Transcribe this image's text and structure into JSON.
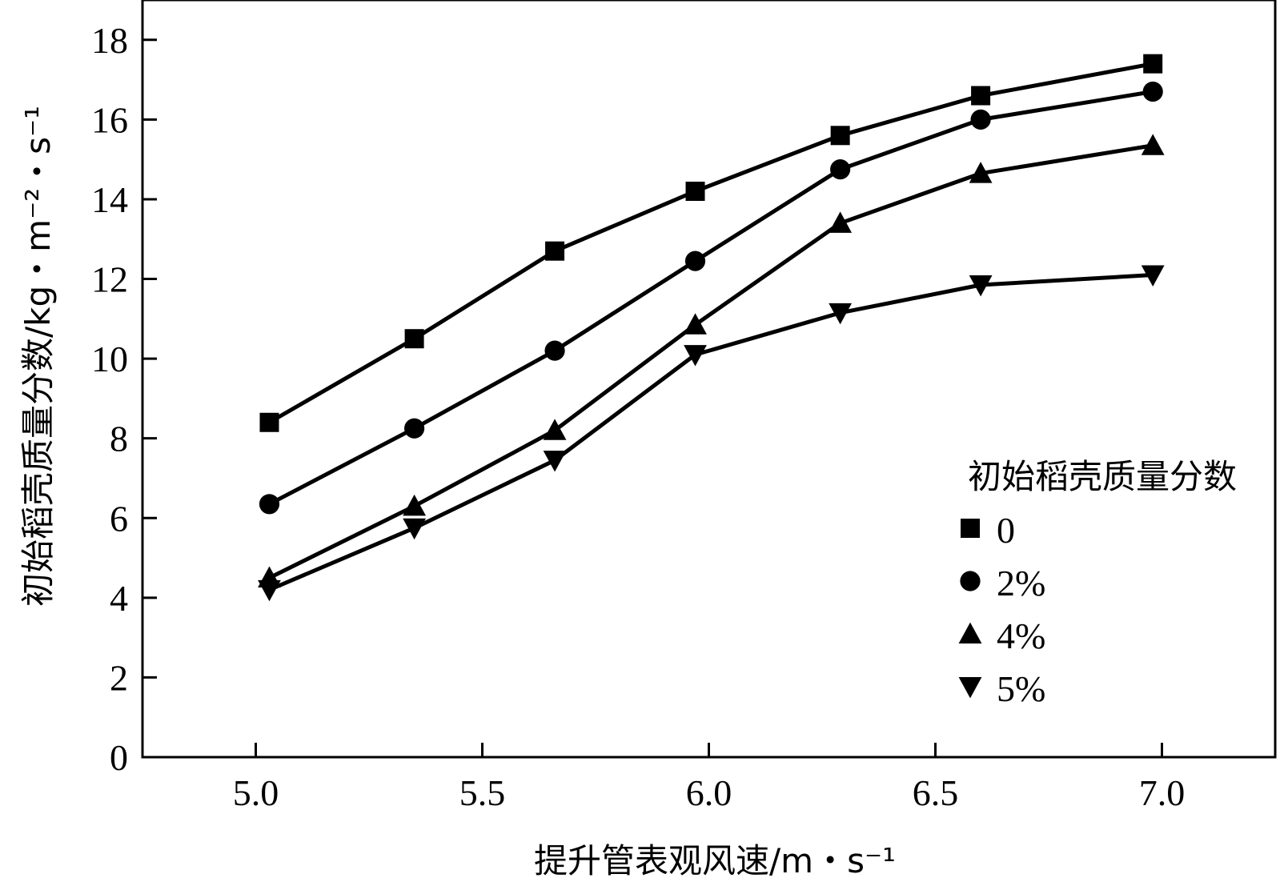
{
  "chart_data": {
    "type": "line",
    "xlabel": "提升管表观风速/m・s⁻¹",
    "ylabel": "初始稻壳质量分数/kg・m⁻²・s⁻¹",
    "xlim": [
      4.75,
      7.25
    ],
    "ylim": [
      0,
      19
    ],
    "x_ticks": [
      "5.0",
      "5.5",
      "6.0",
      "6.5",
      "7.0"
    ],
    "y_ticks": [
      "0",
      "2",
      "4",
      "6",
      "8",
      "10",
      "12",
      "14",
      "16",
      "18"
    ],
    "grid": false,
    "legend": {
      "title": "初始稻壳质量分数",
      "placement": "lower-right"
    },
    "x": [
      5.03,
      5.35,
      5.66,
      5.97,
      6.29,
      6.6,
      6.98
    ],
    "series": [
      {
        "name": "0",
        "marker": "square",
        "values": [
          8.4,
          10.5,
          12.7,
          14.2,
          15.6,
          16.6,
          17.4
        ]
      },
      {
        "name": "2%",
        "marker": "circle",
        "values": [
          6.35,
          8.25,
          10.2,
          12.45,
          14.75,
          16.0,
          16.7
        ]
      },
      {
        "name": "4%",
        "marker": "triangle-up",
        "values": [
          4.5,
          6.3,
          8.2,
          10.85,
          13.4,
          14.65,
          15.35
        ]
      },
      {
        "name": "5%",
        "marker": "triangle-down",
        "values": [
          4.2,
          5.75,
          7.45,
          10.1,
          11.15,
          11.85,
          12.1
        ]
      }
    ]
  }
}
